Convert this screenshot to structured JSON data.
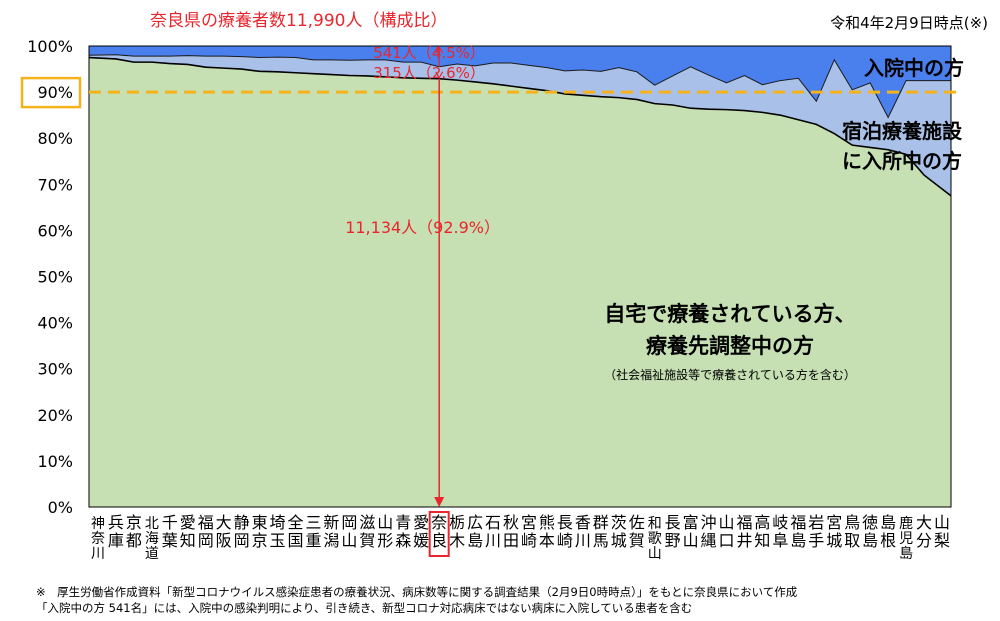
{
  "title": "奈良県の療養者数11,990人（構成比）",
  "date": "令和4年2月9日時点(※)",
  "labels": {
    "inpatient": "入院中の方",
    "hotel_line1": "宿泊療養施設",
    "hotel_line2": "に入所中の方",
    "home_line1": "自宅で療養されている方、",
    "home_line2": "療養先調整中の方",
    "home_note": "（社会福祉施設等で療養されている方を含む）"
  },
  "nara_annotations": {
    "inpatient": "541人（4.5%）",
    "hotel": "315人（2.6%）",
    "home": "11,134人（92.9%）"
  },
  "footnotes": {
    "line1": "※　厚生労働省作成資料「新型コロナウイルス感染症患者の療養状況、病床数等に関する調査結果（2月9日0時時点）」をもとに奈良県において作成",
    "line2": "「入院中の方 541名」には、入院中の感染判明により、引き続き、新型コロナ対応病床ではない病床に入院している患者を含む"
  },
  "colors": {
    "home": "#c6e0b4",
    "hotel": "#a9c1e8",
    "inpatient": "#4a80ee",
    "reference_line": "#f5b21b",
    "highlight": "#e8262c",
    "ref_label_box": "#f5b21b"
  },
  "chart_data": {
    "type": "area",
    "stacked": true,
    "title": "奈良県の療養者数11,990人（構成比）",
    "ylim": [
      0,
      100
    ],
    "yticks": [
      "0%",
      "10%",
      "20%",
      "30%",
      "40%",
      "50%",
      "60%",
      "70%",
      "80%",
      "90%",
      "100%"
    ],
    "reference_line": {
      "value": 90,
      "label": "90%"
    },
    "highlight_category": "奈良",
    "categories": [
      "神奈川",
      "兵庫",
      "京都",
      "北海道",
      "千葉",
      "愛知",
      "福岡",
      "大阪",
      "静岡",
      "東京",
      "埼玉",
      "全国",
      "三重",
      "新潟",
      "岡山",
      "滋賀",
      "山形",
      "青森",
      "愛媛",
      "奈良",
      "栃木",
      "広島",
      "石川",
      "秋田",
      "宮崎",
      "熊本",
      "長崎",
      "香川",
      "群馬",
      "茨城",
      "佐賀",
      "和歌山",
      "長野",
      "富山",
      "沖縄",
      "山口",
      "福井",
      "高知",
      "岐阜",
      "福島",
      "岩手",
      "宮城",
      "鳥取",
      "徳島",
      "島根",
      "鹿児島",
      "大分",
      "山梨"
    ],
    "series": [
      {
        "name": "自宅で療養されている方、療養先調整中の方",
        "values": [
          97.5,
          97.2,
          96.5,
          96.5,
          96.2,
          96.0,
          95.4,
          95.2,
          95.0,
          94.5,
          94.4,
          94.2,
          94.0,
          93.8,
          93.6,
          93.5,
          93.3,
          93.1,
          93.0,
          92.9,
          92.6,
          92.2,
          91.8,
          91.3,
          90.8,
          90.3,
          89.6,
          89.3,
          89.0,
          88.8,
          88.4,
          87.5,
          87.2,
          86.5,
          86.3,
          86.2,
          86.0,
          85.6,
          85.0,
          84.0,
          83.0,
          81.0,
          78.5,
          78.0,
          77.5,
          76.5,
          72.0,
          67.5
        ]
      },
      {
        "name": "宿泊療養施設に入所中の方",
        "values": [
          0.5,
          0.9,
          1.3,
          1.3,
          1.6,
          1.9,
          2.4,
          2.6,
          2.7,
          3.0,
          3.2,
          3.3,
          3.0,
          3.2,
          3.3,
          3.5,
          3.7,
          3.4,
          3.5,
          2.6,
          3.5,
          3.5,
          4.5,
          5.0,
          5.0,
          5.0,
          5.0,
          5.5,
          5.5,
          6.5,
          6.0,
          4.0,
          6.3,
          9.0,
          7.4,
          5.8,
          7.6,
          6.0,
          7.5,
          9.0,
          5.0,
          16.0,
          12.0,
          14.0,
          7.0,
          16.0,
          20.5,
          25.0
        ]
      },
      {
        "name": "入院中の方",
        "values": [
          2.0,
          1.9,
          2.2,
          2.2,
          2.2,
          2.1,
          2.2,
          2.2,
          2.3,
          2.5,
          2.4,
          2.5,
          3.0,
          3.0,
          3.1,
          3.0,
          3.0,
          3.5,
          3.5,
          4.5,
          3.9,
          4.3,
          3.7,
          3.7,
          4.2,
          4.7,
          5.4,
          5.2,
          5.5,
          4.7,
          5.6,
          8.5,
          6.5,
          4.5,
          6.3,
          8.0,
          6.4,
          8.4,
          7.5,
          7.0,
          12.0,
          3.0,
          9.5,
          8.0,
          15.5,
          7.5,
          7.5,
          7.5
        ]
      }
    ]
  }
}
